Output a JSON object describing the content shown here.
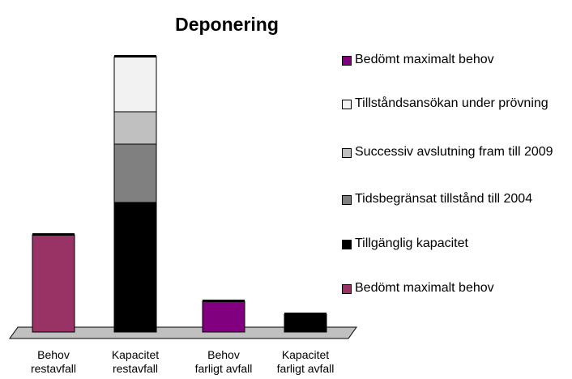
{
  "chart_data": {
    "type": "stacked_bar",
    "title": "Deponering",
    "categories": [
      "Behov restavfall",
      "Kapacitet restavfall",
      "Behov farligt avfall",
      "Kapacitet farligt avfall"
    ],
    "series": [
      {
        "name": "Bedömt maximalt behov",
        "color": "#800080",
        "values": [
          null,
          null,
          38,
          null
        ]
      },
      {
        "name": "Tillståndsansökan under prövning",
        "color": "#f2f2f2",
        "values": [
          null,
          68,
          null,
          null
        ]
      },
      {
        "name": "Successiv avslutning fram till 2009",
        "color": "#c0c0c0",
        "values": [
          null,
          40,
          null,
          null
        ]
      },
      {
        "name": "Tidsbegränsat tillstånd till 2004",
        "color": "#808080",
        "values": [
          null,
          72,
          null,
          null
        ]
      },
      {
        "name": "Tillgänglig kapacitet",
        "color": "#000000",
        "values": [
          null,
          160,
          null,
          22
        ]
      },
      {
        "name": "Bedömt maximalt behov",
        "color": "#993366",
        "values": [
          120,
          null,
          null,
          null
        ]
      }
    ],
    "ylim": [
      0,
      340
    ]
  }
}
